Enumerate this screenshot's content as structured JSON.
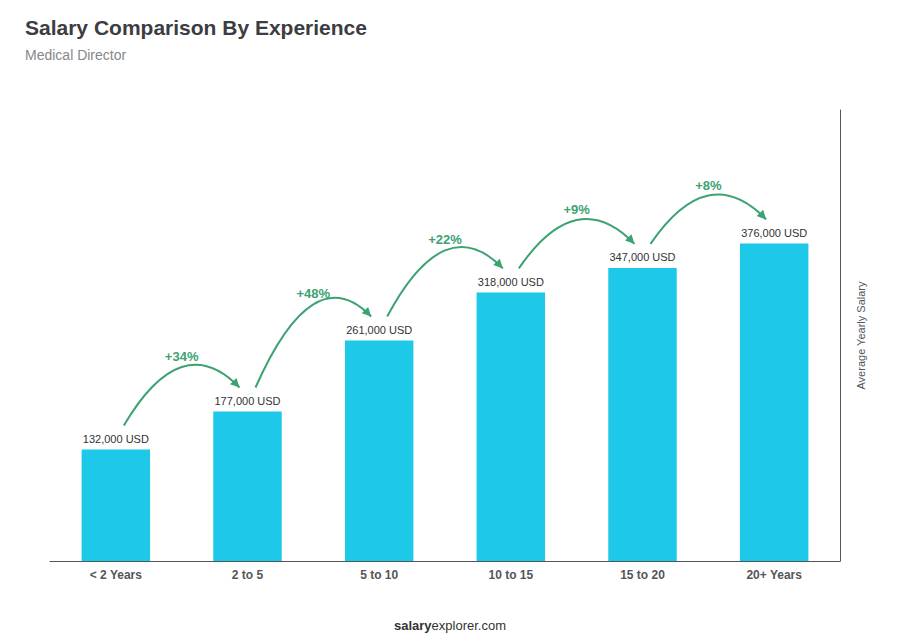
{
  "chart_data": {
    "type": "bar",
    "title": "Salary Comparison By Experience",
    "subtitle": "Medical Director",
    "ylabel": "Average Yearly Salary",
    "categories": [
      "< 2 Years",
      "2 to 5",
      "5 to 10",
      "10 to 15",
      "15 to 20",
      "20+ Years"
    ],
    "values": [
      132000,
      177000,
      261000,
      318000,
      347000,
      376000
    ],
    "value_labels": [
      "132,000 USD",
      "177,000 USD",
      "261,000 USD",
      "318,000 USD",
      "347,000 USD",
      "376,000 USD"
    ],
    "data_labels": true,
    "annotations": [
      "+34%",
      "+48%",
      "+22%",
      "+9%",
      "+8%"
    ],
    "footer": [
      "salary",
      "explorer.com"
    ],
    "color": "#1ec8e8",
    "ylim": [
      0,
      533920
    ],
    "tick_labels": "x",
    "grid": false
  }
}
